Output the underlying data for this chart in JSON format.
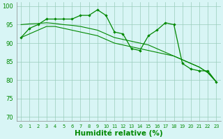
{
  "x": [
    0,
    1,
    2,
    3,
    4,
    5,
    6,
    7,
    8,
    9,
    10,
    11,
    12,
    13,
    14,
    15,
    16,
    17,
    18,
    19,
    20,
    21,
    22,
    23
  ],
  "line_jagged": [
    91.5,
    94.0,
    95.0,
    96.5,
    96.5,
    96.5,
    96.5,
    97.5,
    97.5,
    99.0,
    97.5,
    93.0,
    92.5,
    88.5,
    88.0,
    92.0,
    93.5,
    95.5,
    95.0,
    84.5,
    83.0,
    82.5,
    82.5,
    79.5
  ],
  "line_trend1": [
    95.0,
    95.2,
    95.3,
    95.5,
    95.3,
    95.0,
    94.8,
    94.5,
    94.0,
    93.5,
    92.5,
    91.5,
    91.0,
    90.5,
    90.0,
    89.5,
    88.5,
    87.5,
    86.5,
    85.5,
    84.5,
    83.5,
    82.0,
    79.5
  ],
  "line_trend2": [
    91.5,
    92.5,
    93.5,
    94.5,
    94.5,
    94.0,
    93.5,
    93.0,
    92.5,
    92.0,
    91.0,
    90.0,
    89.5,
    89.0,
    88.5,
    88.0,
    87.5,
    87.0,
    86.5,
    85.5,
    84.5,
    83.5,
    82.0,
    79.5
  ],
  "bg_color": "#d8f5f5",
  "grid_color": "#99ccbb",
  "line_color": "#008800",
  "ylabel_vals": [
    70,
    75,
    80,
    85,
    90,
    95,
    100
  ],
  "xlabel": "Humidité relative (%)",
  "ylim": [
    69,
    101
  ],
  "xlim": [
    -0.5,
    23.5
  ],
  "label_fontsize": 7.5
}
